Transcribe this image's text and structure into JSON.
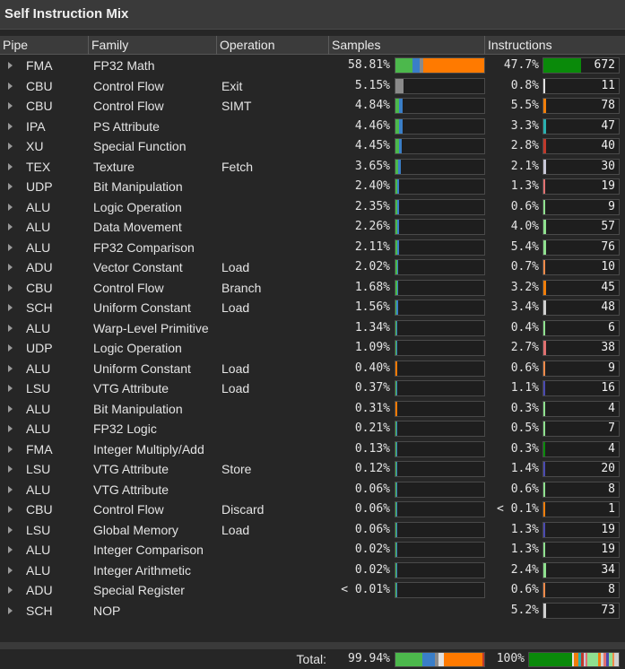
{
  "window": {
    "title": "Self Instruction Mix"
  },
  "columns": {
    "pipe": "Pipe",
    "family": "Family",
    "operation": "Operation",
    "samples": "Samples",
    "instructions": "Instructions"
  },
  "colors": {
    "fma": "#0a8a0a",
    "cbu": "#f07e0a",
    "ipa": "#2ab0b0",
    "xu": "#c0392b",
    "tex": "#c8c8d8",
    "udp": "#e07070",
    "alu": "#8fe08f",
    "adu": "#f08a4a",
    "sch": "#c8c8c8",
    "lsu": "#4a4ab0",
    "sample_green": "#4cb84c",
    "sample_blue": "#3a7ec8",
    "sample_orange": "#ff7a00",
    "sample_gray": "#8a8a8a"
  },
  "rows": [
    {
      "pipe": "FMA",
      "family": "FP32 Math",
      "operation": "",
      "samples": "58.81%",
      "samples_value": 58.81,
      "instr": "47.7%",
      "instr_value": 47.7,
      "count": "672",
      "color": "#0a8a0a"
    },
    {
      "pipe": "CBU",
      "family": "Control Flow",
      "operation": "Exit",
      "samples": "5.15%",
      "samples_value": 5.15,
      "instr": "0.8%",
      "instr_value": 0.8,
      "count": "11",
      "color": "#e0e0e0"
    },
    {
      "pipe": "CBU",
      "family": "Control Flow",
      "operation": "SIMT",
      "samples": "4.84%",
      "samples_value": 4.84,
      "instr": "5.5%",
      "instr_value": 5.5,
      "count": "78",
      "color": "#f07e0a"
    },
    {
      "pipe": "IPA",
      "family": "PS Attribute",
      "operation": "",
      "samples": "4.46%",
      "samples_value": 4.46,
      "instr": "3.3%",
      "instr_value": 3.3,
      "count": "47",
      "color": "#2ab0b0"
    },
    {
      "pipe": "XU",
      "family": "Special Function",
      "operation": "",
      "samples": "4.45%",
      "samples_value": 4.45,
      "instr": "2.8%",
      "instr_value": 2.8,
      "count": "40",
      "color": "#c0392b"
    },
    {
      "pipe": "TEX",
      "family": "Texture",
      "operation": "Fetch",
      "samples": "3.65%",
      "samples_value": 3.65,
      "instr": "2.1%",
      "instr_value": 2.1,
      "count": "30",
      "color": "#c8c8d8"
    },
    {
      "pipe": "UDP",
      "family": "Bit Manipulation",
      "operation": "",
      "samples": "2.40%",
      "samples_value": 2.4,
      "instr": "1.3%",
      "instr_value": 1.3,
      "count": "19",
      "color": "#e07070"
    },
    {
      "pipe": "ALU",
      "family": "Logic Operation",
      "operation": "",
      "samples": "2.35%",
      "samples_value": 2.35,
      "instr": "0.6%",
      "instr_value": 0.6,
      "count": "9",
      "color": "#8fe08f"
    },
    {
      "pipe": "ALU",
      "family": "Data Movement",
      "operation": "",
      "samples": "2.26%",
      "samples_value": 2.26,
      "instr": "4.0%",
      "instr_value": 4.0,
      "count": "57",
      "color": "#8fe08f"
    },
    {
      "pipe": "ALU",
      "family": "FP32 Comparison",
      "operation": "",
      "samples": "2.11%",
      "samples_value": 2.11,
      "instr": "5.4%",
      "instr_value": 5.4,
      "count": "76",
      "color": "#8fe08f"
    },
    {
      "pipe": "ADU",
      "family": "Vector Constant",
      "operation": "Load",
      "samples": "2.02%",
      "samples_value": 2.02,
      "instr": "0.7%",
      "instr_value": 0.7,
      "count": "10",
      "color": "#f08a4a"
    },
    {
      "pipe": "CBU",
      "family": "Control Flow",
      "operation": "Branch",
      "samples": "1.68%",
      "samples_value": 1.68,
      "instr": "3.2%",
      "instr_value": 3.2,
      "count": "45",
      "color": "#f07e0a"
    },
    {
      "pipe": "SCH",
      "family": "Uniform Constant",
      "operation": "Load",
      "samples": "1.56%",
      "samples_value": 1.56,
      "instr": "3.4%",
      "instr_value": 3.4,
      "count": "48",
      "color": "#d0d0d0"
    },
    {
      "pipe": "ALU",
      "family": "Warp-Level Primitive",
      "operation": "",
      "samples": "1.34%",
      "samples_value": 1.34,
      "instr": "0.4%",
      "instr_value": 0.4,
      "count": "6",
      "color": "#8fe08f"
    },
    {
      "pipe": "UDP",
      "family": "Logic Operation",
      "operation": "",
      "samples": "1.09%",
      "samples_value": 1.09,
      "instr": "2.7%",
      "instr_value": 2.7,
      "count": "38",
      "color": "#e07070"
    },
    {
      "pipe": "ALU",
      "family": "Uniform Constant",
      "operation": "Load",
      "samples": "0.40%",
      "samples_value": 0.4,
      "instr": "0.6%",
      "instr_value": 0.6,
      "count": "9",
      "color": "#f08a4a"
    },
    {
      "pipe": "LSU",
      "family": "VTG Attribute",
      "operation": "Load",
      "samples": "0.37%",
      "samples_value": 0.37,
      "instr": "1.1%",
      "instr_value": 1.1,
      "count": "16",
      "color": "#4a4ab0"
    },
    {
      "pipe": "ALU",
      "family": "Bit Manipulation",
      "operation": "",
      "samples": "0.31%",
      "samples_value": 0.31,
      "instr": "0.3%",
      "instr_value": 0.3,
      "count": "4",
      "color": "#8fe08f"
    },
    {
      "pipe": "ALU",
      "family": "FP32 Logic",
      "operation": "",
      "samples": "0.21%",
      "samples_value": 0.21,
      "instr": "0.5%",
      "instr_value": 0.5,
      "count": "7",
      "color": "#8fe08f"
    },
    {
      "pipe": "FMA",
      "family": "Integer Multiply/Add",
      "operation": "",
      "samples": "0.13%",
      "samples_value": 0.13,
      "instr": "0.3%",
      "instr_value": 0.3,
      "count": "4",
      "color": "#0a8a0a"
    },
    {
      "pipe": "LSU",
      "family": "VTG Attribute",
      "operation": "Store",
      "samples": "0.12%",
      "samples_value": 0.12,
      "instr": "1.4%",
      "instr_value": 1.4,
      "count": "20",
      "color": "#4a4ab0"
    },
    {
      "pipe": "ALU",
      "family": "VTG Attribute",
      "operation": "",
      "samples": "0.06%",
      "samples_value": 0.06,
      "instr": "0.6%",
      "instr_value": 0.6,
      "count": "8",
      "color": "#8fe08f"
    },
    {
      "pipe": "CBU",
      "family": "Control Flow",
      "operation": "Discard",
      "samples": "0.06%",
      "samples_value": 0.06,
      "instr": "< 0.1%",
      "instr_value": 0.07,
      "count": "1",
      "color": "#f07e0a"
    },
    {
      "pipe": "LSU",
      "family": "Global Memory",
      "operation": "Load",
      "samples": "0.06%",
      "samples_value": 0.06,
      "instr": "1.3%",
      "instr_value": 1.3,
      "count": "19",
      "color": "#4a4ab0"
    },
    {
      "pipe": "ALU",
      "family": "Integer Comparison",
      "operation": "",
      "samples": "0.02%",
      "samples_value": 0.02,
      "instr": "1.3%",
      "instr_value": 1.3,
      "count": "19",
      "color": "#8fe08f"
    },
    {
      "pipe": "ALU",
      "family": "Integer Arithmetic",
      "operation": "",
      "samples": "0.02%",
      "samples_value": 0.02,
      "instr": "2.4%",
      "instr_value": 2.4,
      "count": "34",
      "color": "#8fe08f"
    },
    {
      "pipe": "ADU",
      "family": "Special Register",
      "operation": "",
      "samples": "< 0.01%",
      "samples_value": 0.005,
      "instr": "0.6%",
      "instr_value": 0.6,
      "count": "8",
      "color": "#f08a4a"
    },
    {
      "pipe": "SCH",
      "family": "NOP",
      "operation": "",
      "samples": "",
      "samples_value": null,
      "instr": "5.2%",
      "instr_value": 5.2,
      "count": "73",
      "color": "#d0d0d0"
    }
  ],
  "footer": {
    "label": "Total:",
    "samples": "99.94%",
    "instr": "100%"
  }
}
